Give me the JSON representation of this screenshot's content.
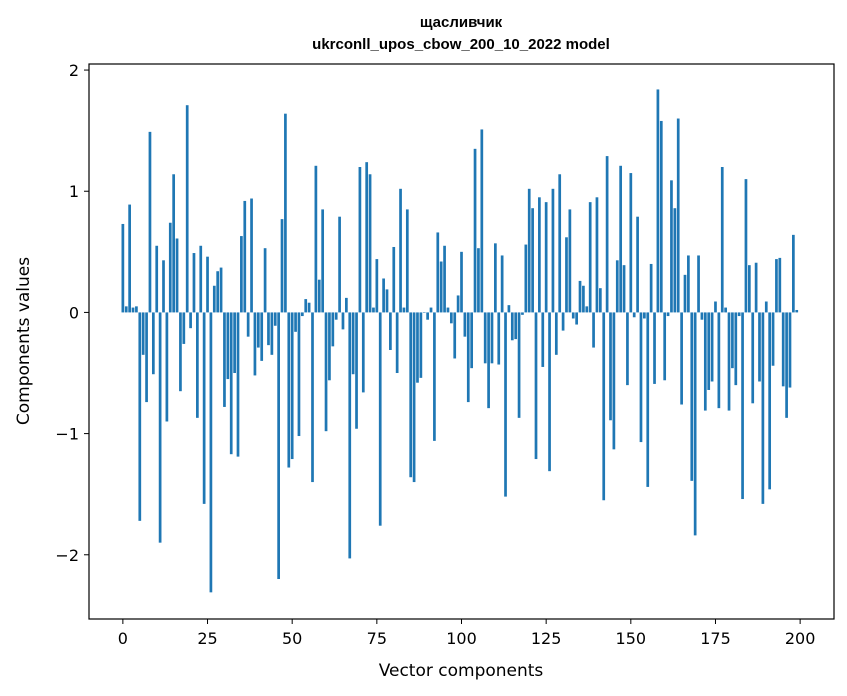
{
  "chart_data": {
    "type": "bar",
    "title_line1": "щасливчик",
    "title_line2": "ukrconll_upos_cbow_200_10_2022 model",
    "xlabel": "Vector components",
    "ylabel": "Components values",
    "xlim": [
      -10,
      210
    ],
    "ylim": [
      -2.53,
      2.05
    ],
    "xticks": [
      0,
      25,
      50,
      75,
      100,
      125,
      150,
      175,
      200
    ],
    "yticks": [
      -2,
      -1,
      0,
      1,
      2
    ],
    "ytick_labels": [
      "−2",
      "−1",
      "0",
      "1",
      "2"
    ],
    "bar_color": "#1f77b4",
    "values": [
      0.73,
      0.05,
      0.89,
      0.04,
      0.05,
      -1.72,
      -0.35,
      -0.74,
      1.49,
      -0.51,
      0.55,
      -1.9,
      0.43,
      -0.9,
      0.74,
      1.14,
      0.61,
      -0.65,
      -0.26,
      1.71,
      -0.13,
      0.49,
      -0.87,
      0.55,
      -1.58,
      0.46,
      -2.31,
      0.22,
      0.34,
      0.37,
      -0.78,
      -0.55,
      -1.17,
      -0.5,
      -1.19,
      0.63,
      0.92,
      -0.2,
      0.94,
      -0.52,
      -0.29,
      -0.4,
      0.53,
      -0.27,
      -0.35,
      -0.11,
      -2.2,
      0.77,
      1.64,
      -1.28,
      -1.21,
      -0.16,
      -1.02,
      -0.03,
      0.11,
      0.08,
      -1.4,
      1.21,
      0.27,
      0.85,
      -0.98,
      -0.56,
      -0.28,
      -0.06,
      0.79,
      -0.14,
      0.12,
      -2.03,
      -0.51,
      -0.96,
      1.2,
      -0.66,
      1.24,
      1.14,
      0.04,
      0.44,
      -1.76,
      0.28,
      0.19,
      -0.31,
      0.54,
      -0.5,
      1.02,
      0.04,
      0.85,
      -1.36,
      -1.4,
      -0.58,
      -0.54,
      0.0,
      -0.06,
      0.04,
      -1.06,
      0.66,
      0.42,
      0.55,
      0.04,
      -0.09,
      -0.38,
      0.14,
      0.5,
      -0.2,
      -0.74,
      -0.46,
      1.35,
      0.53,
      1.51,
      -0.42,
      -0.79,
      -0.42,
      0.57,
      -0.43,
      0.47,
      -1.52,
      0.06,
      -0.23,
      -0.22,
      -0.87,
      -0.02,
      0.56,
      1.02,
      0.86,
      -1.21,
      0.95,
      -0.45,
      0.91,
      -1.31,
      1.02,
      -0.35,
      1.14,
      -0.15,
      0.62,
      0.85,
      -0.05,
      -0.1,
      0.26,
      0.22,
      0.05,
      0.91,
      -0.29,
      0.95,
      0.2,
      -1.55,
      1.29,
      -0.89,
      -1.13,
      0.43,
      1.21,
      0.39,
      -0.6,
      1.15,
      -0.04,
      0.79,
      -1.07,
      -0.05,
      -1.44,
      0.4,
      -0.59,
      1.84,
      1.58,
      -0.56,
      -0.03,
      1.09,
      0.86,
      1.6,
      -0.76,
      0.31,
      0.47,
      -1.39,
      -1.84,
      0.47,
      -0.06,
      -0.81,
      -0.64,
      -0.57,
      0.09,
      -0.79,
      1.2,
      0.04,
      -0.81,
      -0.46,
      -0.6,
      -0.03,
      -1.54,
      1.1,
      0.39,
      -0.75,
      0.41,
      -0.57,
      -1.58,
      0.09,
      -1.46,
      -0.44,
      0.44,
      0.45,
      -0.61,
      -0.87,
      -0.62,
      0.64,
      0.02
    ]
  }
}
